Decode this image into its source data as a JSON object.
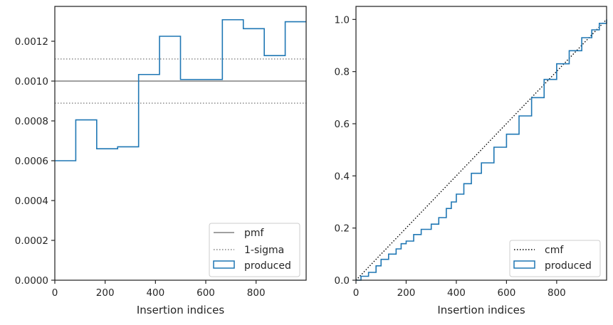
{
  "chart_data": [
    {
      "type": "step-histogram",
      "xlabel": "Insertion indices",
      "ylabel": "",
      "xlim": [
        0,
        999
      ],
      "ylim": [
        0,
        0.001375
      ],
      "xticks": [
        0,
        200,
        400,
        600,
        800
      ],
      "yticks": [
        0,
        0.0002,
        0.0004,
        0.0006,
        0.0008,
        0.001,
        0.0012
      ],
      "ytick_labels": [
        "0.0000",
        "0.0002",
        "0.0004",
        "0.0006",
        "0.0008",
        "0.0010",
        "0.0012"
      ],
      "bin_edges": [
        0,
        83.25,
        166.5,
        249.75,
        333,
        416.25,
        499.5,
        582.75,
        666,
        749.25,
        832.5,
        915.75,
        999
      ],
      "series": [
        {
          "name": "produced",
          "color": "#1f77b4",
          "style": "step",
          "values": [
            0.0006,
            0.000805,
            0.00066,
            0.00067,
            0.001033,
            0.001225,
            0.001008,
            0.001008,
            0.001308,
            0.001263,
            0.001128,
            0.001298
          ]
        }
      ],
      "reference_lines": [
        {
          "name": "pmf",
          "y": 0.001,
          "color": "#808080",
          "style": "solid"
        },
        {
          "name": "1-sigma",
          "y": 0.001111,
          "color": "#808080",
          "style": "dotted"
        },
        {
          "name": "",
          "y": 0.000889,
          "color": "#808080",
          "style": "dotted"
        }
      ],
      "legend": {
        "position": "lower-right",
        "entries": [
          "pmf",
          "1-sigma",
          "produced"
        ]
      },
      "grid": false
    },
    {
      "type": "line",
      "xlabel": "Insertion indices",
      "ylabel": "",
      "xlim": [
        0,
        999
      ],
      "ylim": [
        0,
        1.05
      ],
      "xticks": [
        0,
        200,
        400,
        600,
        800
      ],
      "yticks": [
        0,
        0.2,
        0.4,
        0.6,
        0.8,
        1.0
      ],
      "ytick_labels": [
        "0.0",
        "0.2",
        "0.4",
        "0.6",
        "0.8",
        "1.0"
      ],
      "series": [
        {
          "name": "cmf",
          "color": "#000000",
          "style": "dotted",
          "x": [
            0,
            999
          ],
          "y": [
            0,
            1.0
          ]
        },
        {
          "name": "produced",
          "color": "#1f77b4",
          "style": "step",
          "x": [
            0,
            20,
            50,
            80,
            100,
            130,
            160,
            180,
            200,
            230,
            260,
            300,
            330,
            360,
            380,
            400,
            430,
            460,
            500,
            550,
            600,
            650,
            700,
            750,
            800,
            850,
            900,
            940,
            970,
            999
          ],
          "y": [
            0,
            0.015,
            0.03,
            0.055,
            0.08,
            0.1,
            0.12,
            0.14,
            0.15,
            0.175,
            0.195,
            0.215,
            0.24,
            0.275,
            0.3,
            0.33,
            0.37,
            0.41,
            0.45,
            0.51,
            0.56,
            0.63,
            0.7,
            0.77,
            0.83,
            0.88,
            0.93,
            0.96,
            0.985,
            1.0
          ]
        }
      ],
      "legend": {
        "position": "lower-right",
        "entries": [
          "cmf",
          "produced"
        ]
      },
      "grid": false
    }
  ]
}
